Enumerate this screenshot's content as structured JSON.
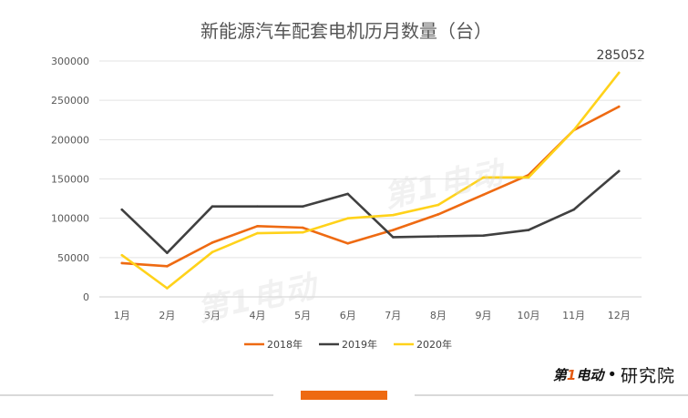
{
  "chart_data": {
    "type": "line",
    "title": "新能源汽车配套电机历月数量（台）",
    "categories": [
      "1月",
      "2月",
      "3月",
      "4月",
      "5月",
      "6月",
      "7月",
      "8月",
      "9月",
      "10月",
      "11月",
      "12月"
    ],
    "series": [
      {
        "name": "2018年",
        "color": "#ee6a12",
        "values": [
          43000,
          39000,
          69000,
          90000,
          88000,
          68000,
          85000,
          105000,
          130000,
          155000,
          212000,
          242000
        ]
      },
      {
        "name": "2019年",
        "color": "#404040",
        "values": [
          111000,
          56000,
          115000,
          115000,
          115000,
          131000,
          76000,
          77000,
          78000,
          85000,
          111000,
          160000
        ]
      },
      {
        "name": "2020年",
        "color": "#ffd21a",
        "values": [
          53000,
          11000,
          57000,
          81000,
          82000,
          100000,
          104000,
          117000,
          152000,
          152000,
          212000,
          285052
        ]
      }
    ],
    "y_ticks": [
      "0",
      "50000",
      "100000",
      "150000",
      "200000",
      "250000",
      "300000"
    ],
    "ylim": [
      0,
      300000
    ],
    "annotation": "285052",
    "xlabel": "",
    "ylabel": "",
    "grid": true,
    "legend_position": "bottom"
  },
  "brand": {
    "logo_first": "第",
    "logo_one": "1",
    "logo_rest": "电动",
    "separator": "•",
    "name": "研究院"
  },
  "watermark": {
    "text": "第1电动"
  }
}
